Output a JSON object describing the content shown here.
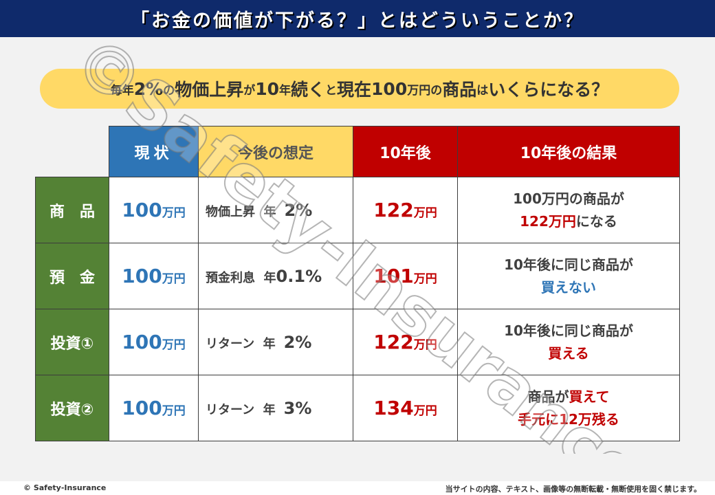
{
  "title": "「お金の価値が下がる？」とはどういうことか？",
  "question": {
    "p1": "毎年",
    "p2": "2%",
    "p3": "の",
    "p4": "物価上昇",
    "p5": "が",
    "p6": "10",
    "p7": "年",
    "p8": "続く",
    "p9": "と",
    "p10": "現在",
    "p11": "100",
    "p12": "万円",
    "p13": "の",
    "p14": "商品",
    "p15": "は",
    "p16": "いくらになる？"
  },
  "headers": {
    "current": "現状",
    "assumption": "今後の想定",
    "after": "10年後",
    "result": "10年後の結果"
  },
  "rows": [
    {
      "label": "商　品",
      "current_value": "100",
      "current_unit": "万円",
      "assume_label": "物価上昇  年",
      "assume_rate": "2%",
      "after_value": "122",
      "after_unit": "万円",
      "result_line1": "100万円の商品が",
      "result_line2a": "122万円",
      "result_line2b": "になる"
    },
    {
      "label": "預　金",
      "current_value": "100",
      "current_unit": "万円",
      "assume_label": "預金利息  年",
      "assume_rate": "0.1%",
      "after_value": "101",
      "after_unit": "万円",
      "result_line1": "10年後に同じ商品が",
      "result_line2a": "買えない",
      "result_line2b": ""
    },
    {
      "label": "投資①",
      "current_value": "100",
      "current_unit": "万円",
      "assume_label": "リターン  年",
      "assume_rate": "2%",
      "after_value": "122",
      "after_unit": "万円",
      "result_line1": "10年後に同じ商品が",
      "result_line2a": "買える",
      "result_line2b": ""
    },
    {
      "label": "投資②",
      "current_value": "100",
      "current_unit": "万円",
      "assume_label": "リターン  年",
      "assume_rate": "3%",
      "after_value": "134",
      "after_unit": "万円",
      "result_line1a": "商品が",
      "result_line1b": "買えて",
      "result_line2": "手元に12万残る"
    }
  ],
  "watermark": "©Safety-Insurance",
  "footer": {
    "copyright": "© Safety-Insurance",
    "notice": "当サイトの内容、テキスト、画像等の無断転載・無断使用を固く禁じます。"
  },
  "colors": {
    "title_bg": "#0f2a6b",
    "current_header": "#2e75b6",
    "assumption_header": "#ffd966",
    "after_header": "#c00000",
    "row_header": "#548235"
  }
}
